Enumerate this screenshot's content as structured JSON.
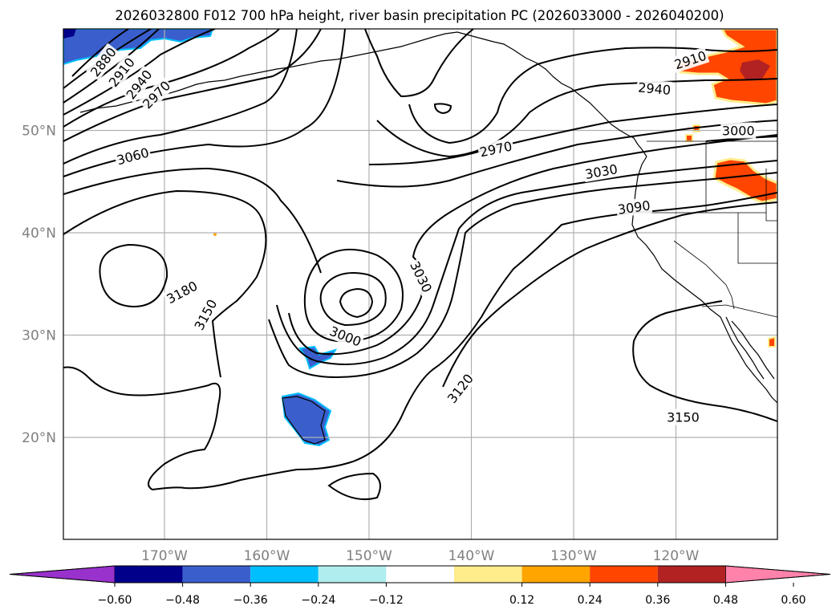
{
  "title": "2026032800 F012 700 hPa height, river basin precipitation PC (2026033000 - 2026040200)",
  "lat_ticks": [
    {
      "label": "50°N",
      "value": 50
    },
    {
      "label": "40°N",
      "value": 40
    },
    {
      "label": "30°N",
      "value": 30
    },
    {
      "label": "20°N",
      "value": 20
    }
  ],
  "lon_ticks": [
    {
      "label": "170°W",
      "value": -170
    },
    {
      "label": "160°W",
      "value": -160
    },
    {
      "label": "150°W",
      "value": -150
    },
    {
      "label": "140°W",
      "value": -140
    },
    {
      "label": "130°W",
      "value": -130
    },
    {
      "label": "120°W",
      "value": -120
    }
  ],
  "contour_labels": [
    {
      "text": "2880",
      "lon": -176.0,
      "lat": 56.7,
      "rot": -52
    },
    {
      "text": "2910",
      "lon": -174.2,
      "lat": 55.7,
      "rot": -52
    },
    {
      "text": "2940",
      "lon": -172.5,
      "lat": 54.5,
      "rot": -52
    },
    {
      "text": "2970",
      "lon": -170.8,
      "lat": 53.5,
      "rot": -45
    },
    {
      "text": "3060",
      "lon": -173.1,
      "lat": 47.5,
      "rot": -15
    },
    {
      "text": "3180",
      "lon": -168.3,
      "lat": 34.2,
      "rot": -28
    },
    {
      "text": "3150",
      "lon": -166.0,
      "lat": 32.0,
      "rot": -62
    },
    {
      "text": "3000",
      "lon": -152.3,
      "lat": 29.9,
      "rot": 22
    },
    {
      "text": "3030",
      "lon": -144.9,
      "lat": 35.7,
      "rot": 64
    },
    {
      "text": "3120",
      "lon": -141.1,
      "lat": 24.8,
      "rot": -52
    },
    {
      "text": "2970",
      "lon": -137.6,
      "lat": 48.2,
      "rot": -12
    },
    {
      "text": "3030",
      "lon": -127.3,
      "lat": 46.0,
      "rot": -10
    },
    {
      "text": "3090",
      "lon": -124.1,
      "lat": 42.5,
      "rot": -8
    },
    {
      "text": "2940",
      "lon": -122.1,
      "lat": 54.1,
      "rot": 5
    },
    {
      "text": "2910",
      "lon": -118.6,
      "lat": 56.9,
      "rot": -18
    },
    {
      "text": "3000",
      "lon": -113.9,
      "lat": 50.0,
      "rot": 0
    },
    {
      "text": "3150",
      "lon": -119.3,
      "lat": 22.0,
      "rot": 0
    }
  ],
  "colorbar": {
    "colors": [
      "#9932cc",
      "#00008b",
      "#3a5fcd",
      "#00bfff",
      "#afeeee",
      "#ffffff",
      "#ffec8b",
      "#ffa500",
      "#ff4500",
      "#b22222",
      "#ff82ab"
    ],
    "tick_labels": [
      "−0.60",
      "−0.48",
      "−0.36",
      "−0.24",
      "−0.12",
      "0.12",
      "0.24",
      "0.36",
      "0.48",
      "0.60"
    ]
  }
}
